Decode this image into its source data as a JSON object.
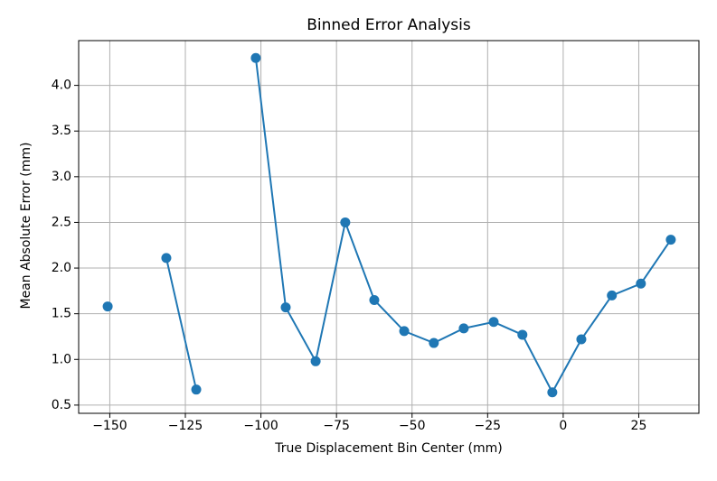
{
  "chart_data": {
    "type": "line",
    "title": "Binned Error Analysis",
    "x_label": "True Displacement Bin Center (mm)",
    "y_label": "Mean Absolute Error (mm)",
    "x": [
      -150.7,
      -141.0,
      -131.3,
      -121.4,
      -111.5,
      -101.7,
      -91.8,
      -81.9,
      -72.1,
      -62.5,
      -52.6,
      -42.8,
      -32.9,
      -23.0,
      -13.5,
      -3.6,
      6.0,
      16.1,
      25.7,
      35.6
    ],
    "series": [
      {
        "name": "MAE",
        "color": "#1f77b4",
        "values": [
          1.58,
          null,
          2.11,
          0.67,
          null,
          4.3,
          1.57,
          0.98,
          2.5,
          1.65,
          1.31,
          1.18,
          1.34,
          1.41,
          1.27,
          0.64,
          1.22,
          1.7,
          1.83,
          2.31
        ]
      }
    ],
    "xlim": [
      -160.3,
      44.9
    ],
    "ylim": [
      0.41,
      4.49
    ],
    "xticks": [
      {
        "value": -150,
        "label": "−150"
      },
      {
        "value": -125,
        "label": "−125"
      },
      {
        "value": -100,
        "label": "−100"
      },
      {
        "value": -75,
        "label": "−75"
      },
      {
        "value": -50,
        "label": "−50"
      },
      {
        "value": -25,
        "label": "−25"
      },
      0,
      25
    ],
    "yticks": [
      0.5,
      {
        "value": 1.0,
        "label": "1.0"
      },
      1.5,
      {
        "value": 2.0,
        "label": "2.0"
      },
      2.5,
      {
        "value": 3.0,
        "label": "3.0"
      },
      3.5,
      {
        "value": 4.0,
        "label": "4.0"
      }
    ],
    "grid": true
  }
}
